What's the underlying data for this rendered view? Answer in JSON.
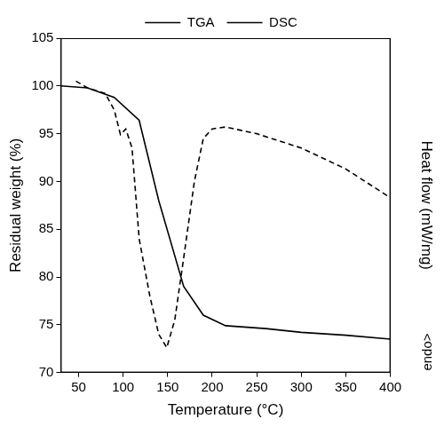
{
  "chart_data": {
    "type": "line",
    "x_label": "Temperature (°C)",
    "y_label": "Residual weight (%)",
    "y2_label": "Heat flow (mW/mg)",
    "xlim": [
      30,
      400
    ],
    "xticks": [
      50,
      100,
      150,
      200,
      250,
      300,
      350,
      400
    ],
    "ylim": [
      70,
      105
    ],
    "yticks": [
      70,
      75,
      80,
      85,
      90,
      95,
      100,
      105
    ],
    "y2lim": [
      70,
      105
    ],
    "y2ticks": [],
    "grid": false,
    "legend": "top",
    "annotations": [
      {
        "text": "endo>"
      }
    ],
    "series": [
      {
        "name": "TGA",
        "color": "#000000",
        "line_style": "solid",
        "axis": "y",
        "x": [
          30,
          60,
          90,
          118,
          140,
          168,
          190,
          215,
          260,
          300,
          350,
          400
        ],
        "values": [
          100,
          99.8,
          98.8,
          96.4,
          88,
          79,
          76,
          74.9,
          74.6,
          74.2,
          73.9,
          73.5
        ]
      },
      {
        "name": "DSC",
        "color": "#000000",
        "line_style": "dashed",
        "axis": "y2",
        "x": [
          47,
          60,
          80,
          90,
          97,
          103,
          110,
          118,
          130,
          140,
          149,
          158,
          168,
          180,
          190,
          200,
          215,
          250,
          300,
          350,
          400
        ],
        "values": [
          100.5,
          99.8,
          99.2,
          97.5,
          94.9,
          95.5,
          93.5,
          84,
          78,
          74,
          72.6,
          75.5,
          82,
          90,
          94.5,
          95.5,
          95.7,
          95,
          93.5,
          91.3,
          88.3
        ]
      }
    ]
  }
}
